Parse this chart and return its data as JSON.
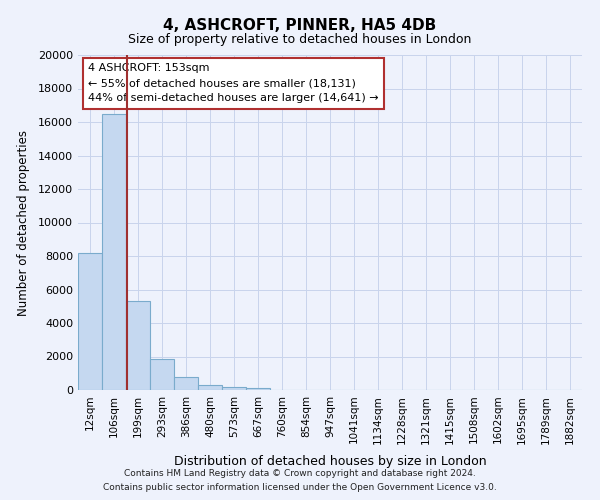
{
  "title": "4, ASHCROFT, PINNER, HA5 4DB",
  "subtitle": "Size of property relative to detached houses in London",
  "xlabel": "Distribution of detached houses by size in London",
  "ylabel": "Number of detached properties",
  "categories": [
    "12sqm",
    "106sqm",
    "199sqm",
    "293sqm",
    "386sqm",
    "480sqm",
    "573sqm",
    "667sqm",
    "760sqm",
    "854sqm",
    "947sqm",
    "1041sqm",
    "1134sqm",
    "1228sqm",
    "1321sqm",
    "1415sqm",
    "1508sqm",
    "1602sqm",
    "1695sqm",
    "1789sqm",
    "1882sqm"
  ],
  "bar_values": [
    8200,
    16500,
    5300,
    1850,
    750,
    300,
    200,
    130,
    0,
    0,
    0,
    0,
    0,
    0,
    0,
    0,
    0,
    0,
    0,
    0,
    0
  ],
  "bar_color": "#c5d8f0",
  "bar_edge_color": "#7aabcc",
  "vertical_line_x": 1.55,
  "vline_color": "#a03030",
  "ylim": [
    0,
    20000
  ],
  "yticks": [
    0,
    2000,
    4000,
    6000,
    8000,
    10000,
    12000,
    14000,
    16000,
    18000,
    20000
  ],
  "annotation_title": "4 ASHCROFT: 153sqm",
  "annotation_line1": "← 55% of detached houses are smaller (18,131)",
  "annotation_line2": "44% of semi-detached houses are larger (14,641) →",
  "annotation_box_color": "#ffffff",
  "annotation_border_color": "#b03030",
  "footer_line1": "Contains HM Land Registry data © Crown copyright and database right 2024.",
  "footer_line2": "Contains public sector information licensed under the Open Government Licence v3.0.",
  "background_color": "#eef2fc",
  "plot_bg_color": "#eef2fc",
  "grid_color": "#c8d4ec"
}
